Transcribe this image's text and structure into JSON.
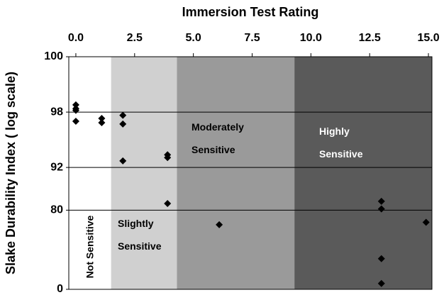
{
  "chart_data": {
    "type": "scatter",
    "title": "Immersion Test Rating",
    "y_label": "Slake Durability Index ( log scale)",
    "xlim": [
      -0.3,
      15.15
    ],
    "xticks": [
      {
        "value": 0,
        "label": "0.0"
      },
      {
        "value": 2.5,
        "label": "2.5"
      },
      {
        "value": 5,
        "label": "5.0"
      },
      {
        "value": 7.5,
        "label": "7.5"
      },
      {
        "value": 10,
        "label": "10.0"
      },
      {
        "value": 12.5,
        "label": "12.5"
      },
      {
        "value": 15,
        "label": "15.0"
      }
    ],
    "ylim": [
      0,
      100
    ],
    "yticks": [
      0,
      80,
      92,
      98,
      100
    ],
    "y_scale": "log",
    "grid": true,
    "color": "#000000",
    "regions": [
      {
        "name": "Not Sensitive",
        "range": [
          -0.3,
          1.5
        ],
        "color": "#ffffff"
      },
      {
        "name": "Slightly Sensitive",
        "range": [
          1.5,
          4.3
        ],
        "color": "#d0d0d0"
      },
      {
        "name": "Moderately Sensitive",
        "range": [
          4.3,
          9.3
        ],
        "color": "#9a9a9a"
      },
      {
        "name": "Highly Sensitive",
        "range": [
          9.3,
          15.15
        ],
        "color": "#5a5a5a"
      }
    ],
    "x": [
      0,
      0,
      0,
      0,
      1.1,
      1.1,
      2,
      2,
      2,
      3.9,
      3.9,
      3.9,
      6.1,
      13,
      13,
      13,
      13,
      14.9
    ],
    "values": [
      98.4,
      98.2,
      98.1,
      97.4,
      97.6,
      97.3,
      97.8,
      97.2,
      93.1,
      94.0,
      93.6,
      82.6,
      73,
      83.4,
      80.5,
      46,
      11,
      74.3
    ]
  }
}
